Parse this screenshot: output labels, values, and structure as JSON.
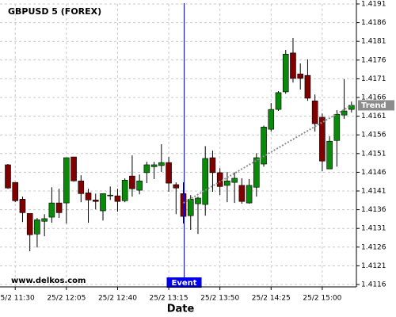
{
  "chart_data": {
    "type": "candlestick",
    "title": "GBPUSD 5 (FOREX)",
    "x_label": "Date",
    "watermark": "www.delkos.com",
    "categories": [
      null,
      "25/2 11:30",
      null,
      null,
      null,
      null,
      null,
      null,
      "25/2 12:05",
      null,
      null,
      null,
      null,
      null,
      null,
      "25/2 12:40",
      null,
      null,
      null,
      null,
      null,
      null,
      "25/2 13:15",
      null,
      null,
      null,
      null,
      null,
      null,
      "25/2 13:50",
      null,
      null,
      null,
      null,
      null,
      null,
      "25/2 14:25",
      null,
      null,
      null,
      null,
      null,
      null,
      "25/2 15:00",
      null,
      null,
      null,
      null
    ],
    "open": [
      1.4148,
      1.41433,
      1.41388,
      1.4135,
      1.41295,
      1.41329,
      1.4134,
      1.41378,
      1.41378,
      1.41501,
      1.41437,
      1.41405,
      1.41386,
      1.41357,
      1.41397,
      1.41397,
      1.41384,
      1.4145,
      1.41412,
      1.41459,
      1.41475,
      1.41478,
      1.41486,
      1.41427,
      1.41403,
      1.41344,
      1.41376,
      1.41374,
      1.41499,
      1.41459,
      1.41425,
      1.41433,
      1.41425,
      1.41378,
      1.4142,
      1.41482,
      1.41575,
      1.41628,
      1.41675,
      1.41779,
      1.41723,
      1.41719,
      1.41651,
      1.41607,
      1.41469,
      1.41545,
      1.41613,
      1.41628
    ],
    "high": [
      1.41482,
      1.41433,
      1.41395,
      1.4135,
      1.41338,
      1.41348,
      1.4142,
      1.41416,
      1.41499,
      1.41501,
      1.41452,
      1.41416,
      1.41403,
      1.41403,
      1.41422,
      1.41416,
      1.41444,
      1.41505,
      1.41454,
      1.41488,
      1.41488,
      1.41535,
      1.41501,
      1.41433,
      1.41433,
      1.41399,
      1.41395,
      1.4153,
      1.41518,
      1.41471,
      1.41461,
      1.41459,
      1.41444,
      1.41442,
      1.41511,
      1.41585,
      1.41645,
      1.41677,
      1.41787,
      1.41819,
      1.41751,
      1.41762,
      1.41668,
      1.41617,
      1.41556,
      1.41626,
      1.41709,
      1.41649
    ],
    "low": [
      1.41416,
      1.4138,
      1.41327,
      1.41249,
      1.41259,
      1.41289,
      1.41325,
      1.41338,
      1.41323,
      1.41435,
      1.4138,
      1.41325,
      1.41361,
      1.41331,
      1.41386,
      1.41355,
      1.4138,
      1.41395,
      1.41401,
      1.41431,
      1.41442,
      1.41461,
      1.41408,
      1.41348,
      1.41323,
      1.41306,
      1.41295,
      1.41344,
      1.41408,
      1.41399,
      1.4138,
      1.41378,
      1.41376,
      1.41376,
      1.41395,
      1.41475,
      1.41569,
      1.41624,
      1.4167,
      1.417,
      1.41681,
      1.41651,
      1.41569,
      1.41463,
      1.41469,
      1.41475,
      1.41603,
      1.4162
    ],
    "close": [
      1.41418,
      1.41384,
      1.41352,
      1.41293,
      1.41333,
      1.41336,
      1.41378,
      1.41352,
      1.41499,
      1.41437,
      1.41403,
      1.41386,
      1.41382,
      1.41403,
      1.41399,
      1.41382,
      1.41439,
      1.41416,
      1.41437,
      1.4148,
      1.4148,
      1.41486,
      1.41431,
      1.41418,
      1.41342,
      1.41388,
      1.41391,
      1.41497,
      1.41459,
      1.41422,
      1.41437,
      1.41444,
      1.41382,
      1.41425,
      1.41499,
      1.41581,
      1.41628,
      1.41673,
      1.41776,
      1.41711,
      1.41711,
      1.41658,
      1.4159,
      1.4149,
      1.41543,
      1.41615,
      1.41624,
      1.41639
    ],
    "up_color": "#0a8a0a",
    "down_color": "#800000",
    "trend": {
      "label": "Trend",
      "color": "#8c8c8c",
      "values": [
        null,
        null,
        null,
        null,
        null,
        null,
        null,
        null,
        null,
        null,
        null,
        null,
        null,
        null,
        null,
        null,
        null,
        null,
        null,
        null,
        null,
        null,
        null,
        null,
        1.41378,
        null,
        null,
        null,
        null,
        null,
        null,
        null,
        null,
        null,
        null,
        null,
        null,
        null,
        null,
        null,
        null,
        null,
        null,
        null,
        null,
        null,
        null,
        1.41639
      ]
    },
    "event_labels": [
      null,
      null,
      null,
      null,
      null,
      null,
      null,
      null,
      null,
      null,
      null,
      null,
      null,
      null,
      null,
      null,
      null,
      null,
      null,
      null,
      null,
      null,
      null,
      null,
      "Event",
      null,
      null,
      null,
      null,
      null,
      null,
      null,
      null,
      null,
      null,
      null,
      null,
      null,
      null,
      null,
      null,
      null,
      null,
      null,
      null,
      null,
      null,
      null
    ],
    "event_color": "#0000ee",
    "ylim": [
      1.4116,
      1.4191
    ],
    "yticks": [
      1.4116,
      1.4121,
      1.4126,
      1.4131,
      1.4136,
      1.4141,
      1.4146,
      1.4151,
      1.4156,
      1.4161,
      1.4166,
      1.4171,
      1.4176,
      1.4181,
      1.4186,
      1.4191
    ],
    "grid": true
  }
}
